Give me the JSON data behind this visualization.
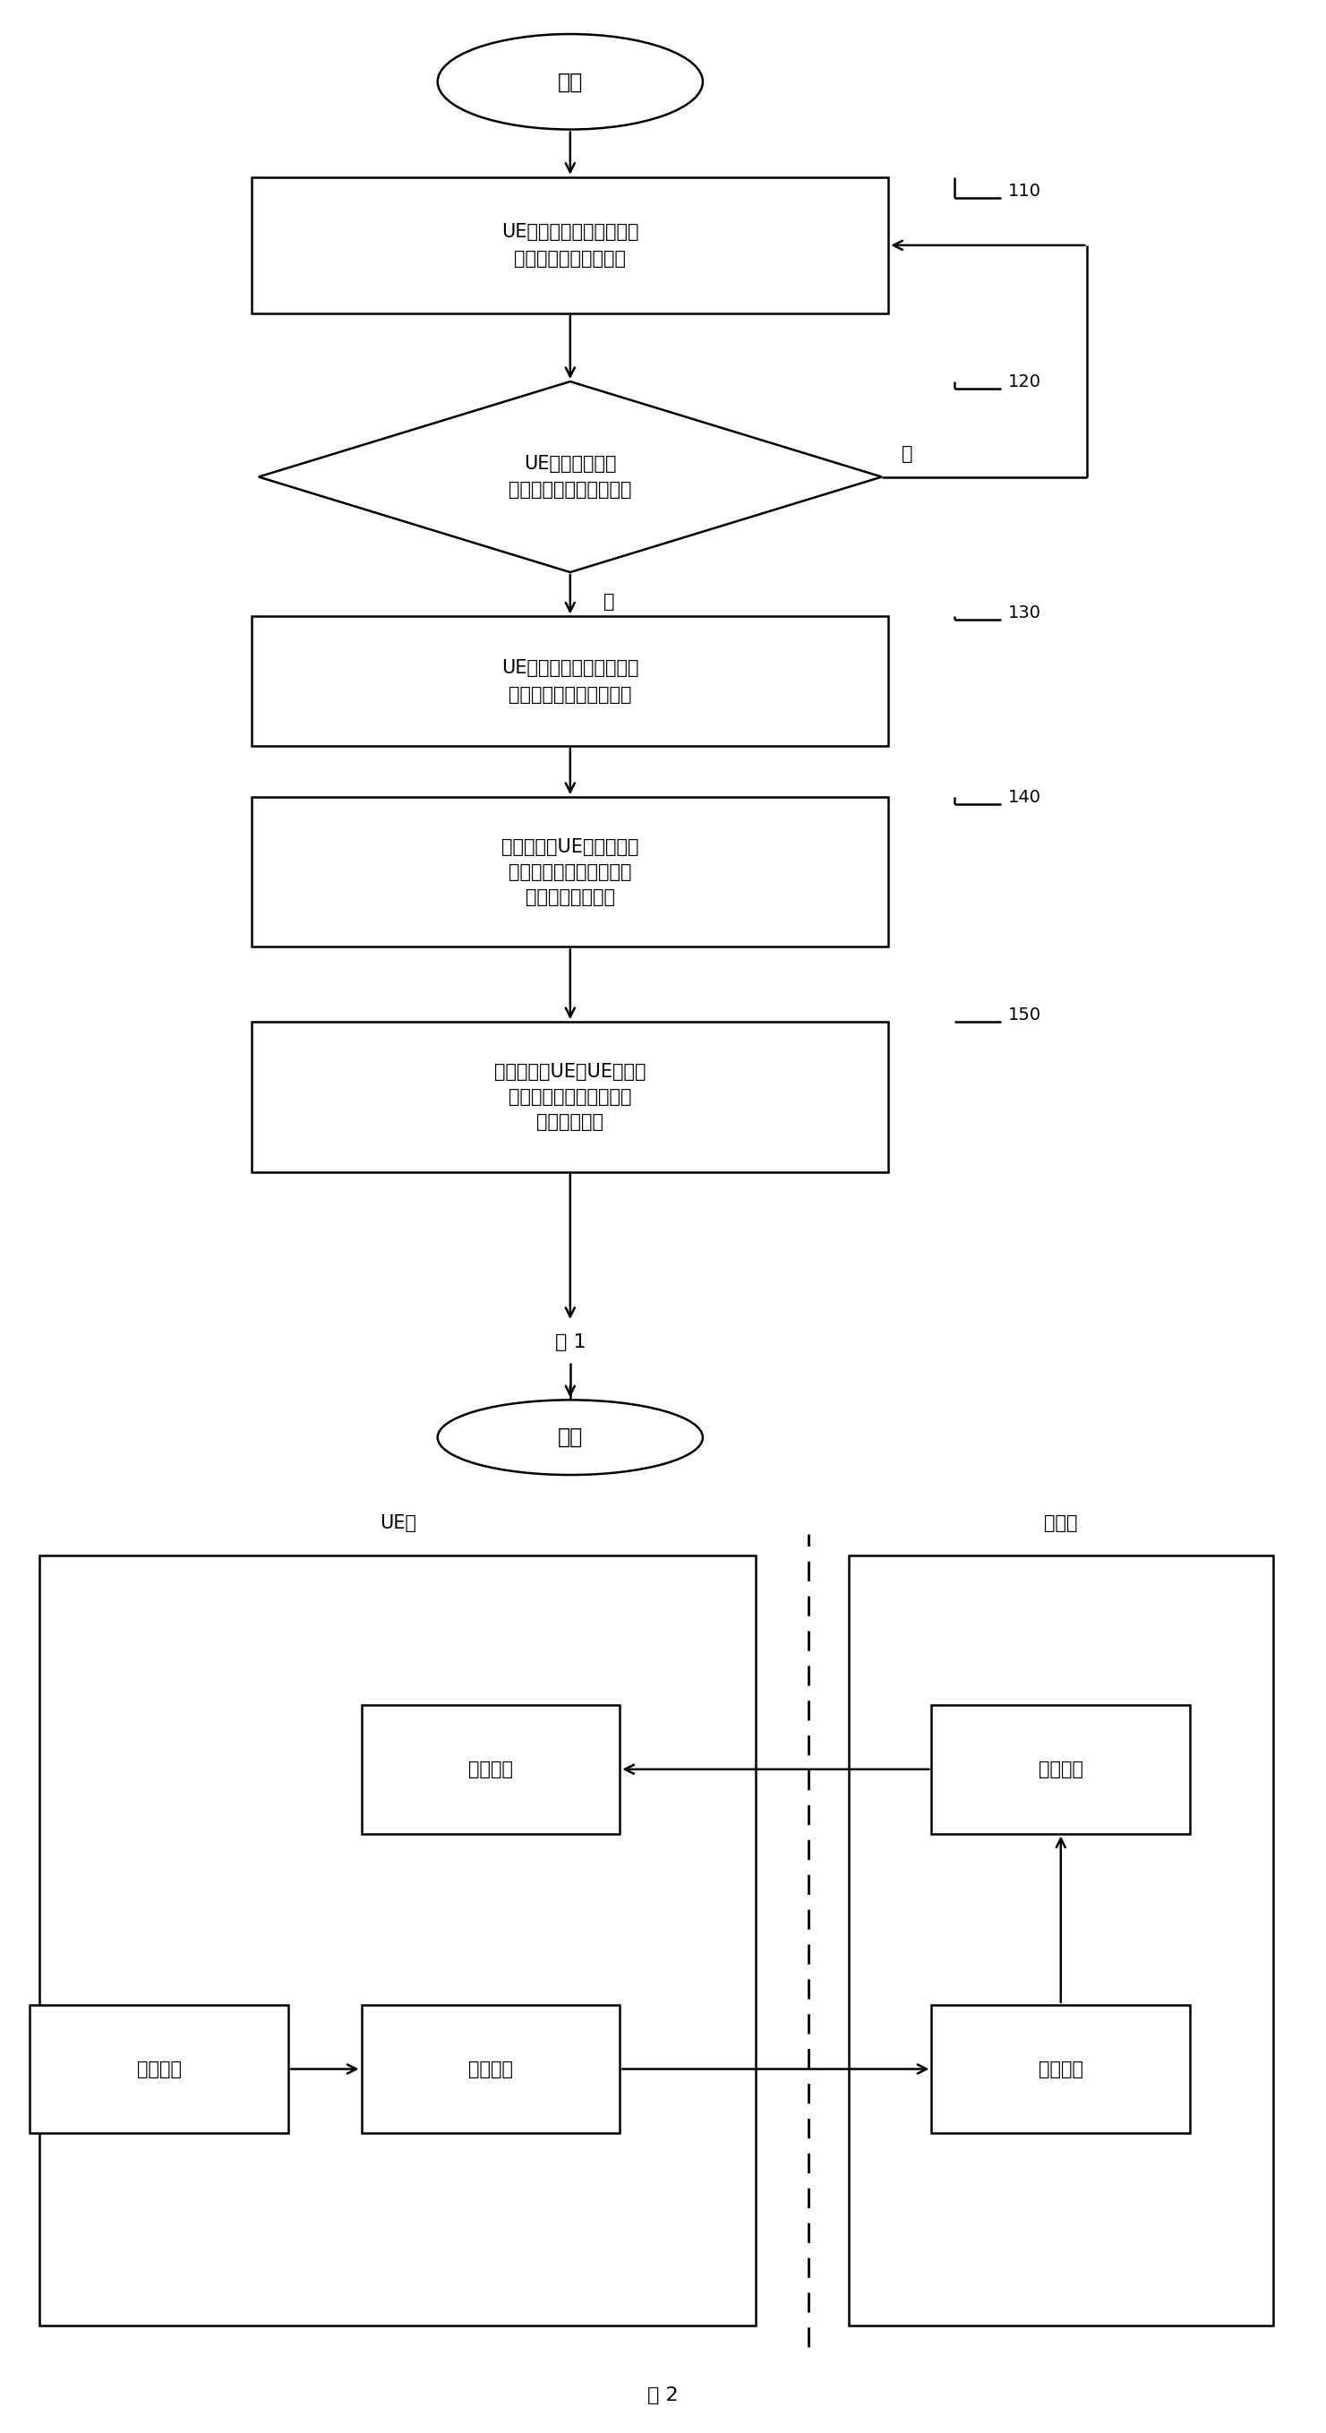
{
  "fig1_title": "图 1",
  "fig2_title": "图 2",
  "start_label": "开始",
  "end_label": "结束",
  "box110_text": "UE对周边小区进行检测，\n从中选定候选最优小区",
  "diamond120_text": "UE判断该候选最\n优小区是否满足上报准则",
  "box130_text": "UE向网络侧周期性上报该\n候选最优小区的测量报告",
  "box140_text": "网络侧根据UE周期性上报\n的测量报告，确定并更新\n网络侧的最优小区",
  "box150_text": "网络侧指示UE将UE侧的最\n优小区更新为网络侧所确\n定的最优小区",
  "label110": "110",
  "label120": "120",
  "label130": "130",
  "label140": "140",
  "label150": "150",
  "yes_label": "是",
  "no_label": "否",
  "ue_side_label": "UE侧",
  "net_side_label": "网络侧",
  "jiance_text": "检测模块",
  "shezhi_text": "设置模块",
  "shangbao_text": "上报模块",
  "kongzhi_text": "控制设备",
  "gengxin_text": "更新设备",
  "bg_color": "#ffffff",
  "box_color": "#ffffff",
  "line_color": "#000000",
  "font_size": 15,
  "label_font_size": 14,
  "title_font_size": 16
}
